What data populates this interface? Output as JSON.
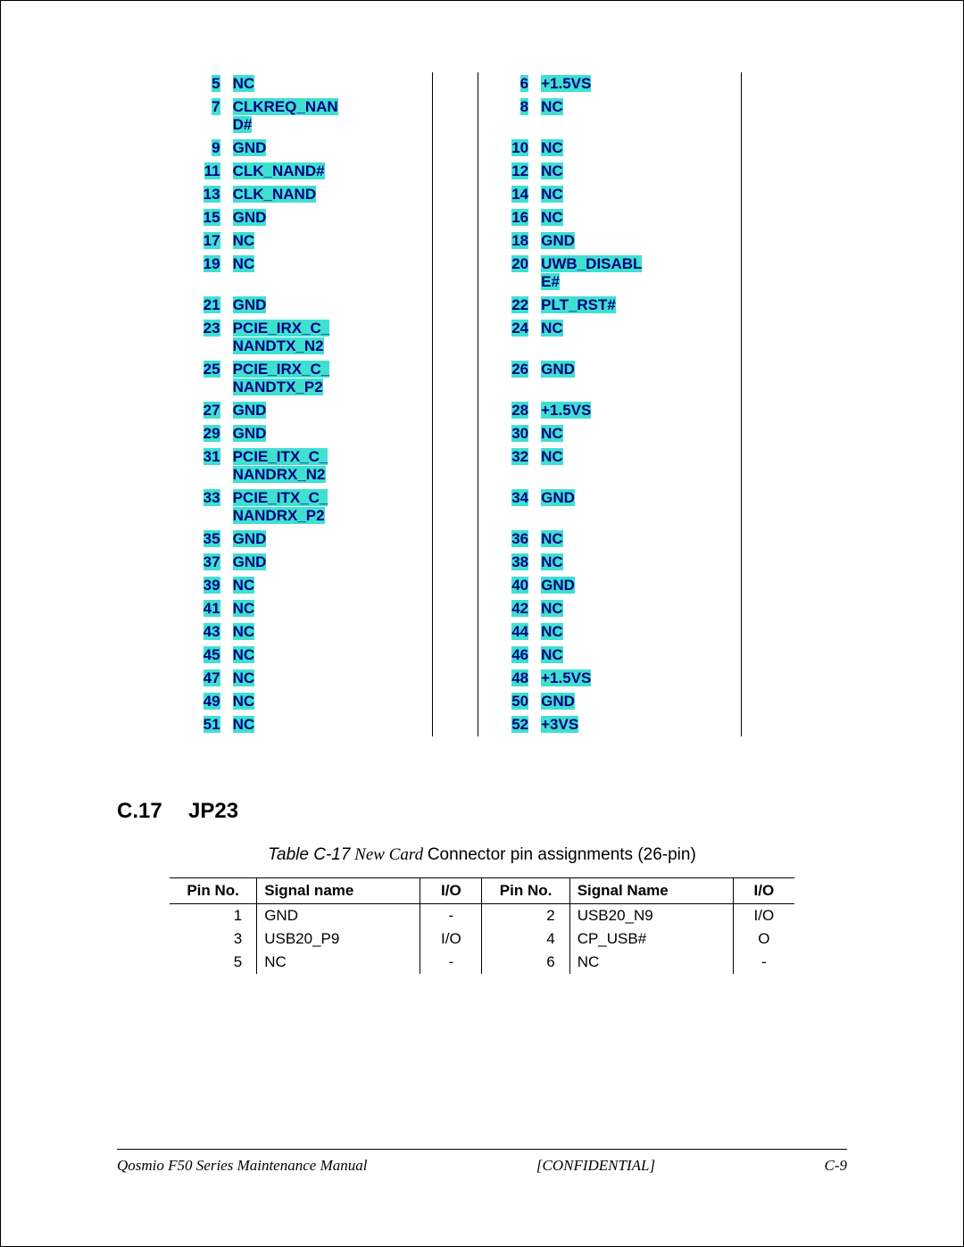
{
  "highlight_color": "#40e0d0",
  "text_color_highlighted": "#000080",
  "top_table": {
    "rows": [
      {
        "p1": "5",
        "s1": "NC",
        "p2": "6",
        "s2": "+1.5VS"
      },
      {
        "p1": "7",
        "s1": "CLKREQ_NAN",
        "s1b": "D#",
        "p2": "8",
        "s2": "NC"
      },
      {
        "p1": "9",
        "s1": "GND",
        "p2": "10",
        "s2": "NC"
      },
      {
        "p1": "11",
        "s1": "CLK_NAND#",
        "p2": "12",
        "s2": "NC"
      },
      {
        "p1": "13",
        "s1": "CLK_NAND",
        "p2": "14",
        "s2": "NC"
      },
      {
        "p1": "15",
        "s1": "GND",
        "p2": "16",
        "s2": "NC"
      },
      {
        "p1": "17",
        "s1": "NC",
        "p2": "18",
        "s2": "GND"
      },
      {
        "p1": "19",
        "s1": "NC",
        "p2": "20",
        "s2": "UWB_DISABL",
        "s2b": "E#"
      },
      {
        "p1": "21",
        "s1": "GND",
        "p2": "22",
        "s2": "PLT_RST#"
      },
      {
        "p1": "23",
        "s1": "PCIE_IRX_C_",
        "s1b": "NANDTX_N2",
        "p2": "24",
        "s2": "NC"
      },
      {
        "p1": "25",
        "s1": "PCIE_IRX_C_",
        "s1b": "NANDTX_P2",
        "p2": "26",
        "s2": "GND"
      },
      {
        "p1": "27",
        "s1": "GND",
        "p2": "28",
        "s2": "+1.5VS"
      },
      {
        "p1": "29",
        "s1": "GND",
        "p2": "30",
        "s2": "NC"
      },
      {
        "p1": "31",
        "s1": "PCIE_ITX_C_",
        "s1b": "NANDRX_N2",
        "p2": "32",
        "s2": "NC"
      },
      {
        "p1": "33",
        "s1": "PCIE_ITX_C_",
        "s1b": "NANDRX_P2",
        "p2": "34",
        "s2": "GND"
      },
      {
        "p1": "35",
        "s1": "GND",
        "p2": "36",
        "s2": "NC"
      },
      {
        "p1": "37",
        "s1": "GND",
        "p2": "38",
        "s2": "NC"
      },
      {
        "p1": "39",
        "s1": "NC",
        "p2": "40",
        "s2": "GND"
      },
      {
        "p1": "41",
        "s1": "NC",
        "p2": "42",
        "s2": "NC"
      },
      {
        "p1": "43",
        "s1": "NC",
        "p2": "44",
        "s2": "NC"
      },
      {
        "p1": "45",
        "s1": "NC",
        "p2": "46",
        "s2": "NC"
      },
      {
        "p1": "47",
        "s1": "NC",
        "p2": "48",
        "s2": "+1.5VS"
      },
      {
        "p1": "49",
        "s1": "NC",
        "p2": "50",
        "s2": "GND"
      },
      {
        "p1": "51",
        "s1": "NC",
        "p2": "52",
        "s2": "+3VS"
      }
    ]
  },
  "section": {
    "number": "C.17",
    "title": "JP23"
  },
  "caption": {
    "prefix": "Table C-17",
    "italic": " New Card ",
    "rest": "Connector pin assignments (26-pin)"
  },
  "bottom_table": {
    "headers": [
      "Pin No.",
      "Signal name",
      "I/O",
      "Pin No.",
      "Signal Name",
      "I/O"
    ],
    "rows": [
      [
        "1",
        "GND",
        "-",
        "2",
        "USB20_N9",
        "I/O"
      ],
      [
        "3",
        "USB20_P9",
        "I/O",
        "4",
        "CP_USB#",
        "O"
      ],
      [
        "5",
        "NC",
        "-",
        "6",
        "NC",
        "-"
      ]
    ]
  },
  "footer": {
    "left": "Qosmio F50 Series Maintenance Manual",
    "center": "[CONFIDENTIAL]",
    "right": "C-9"
  }
}
